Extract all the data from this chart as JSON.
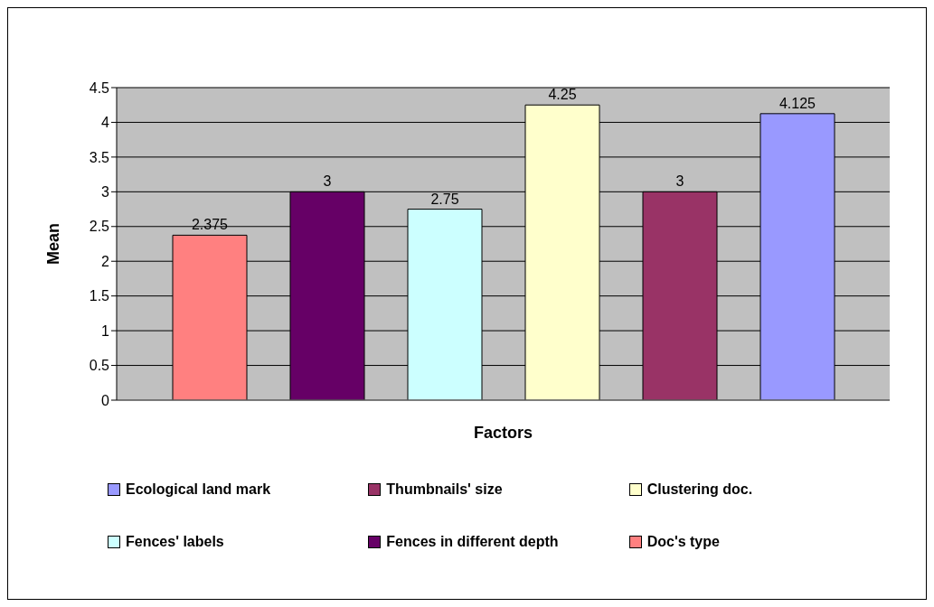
{
  "chart_data": {
    "type": "bar",
    "xlabel": "Factors",
    "ylabel": "Mean",
    "categories": [
      null
    ],
    "series": [
      {
        "name": "Doc's type",
        "color": "#ff8080",
        "values": [
          2.375
        ]
      },
      {
        "name": "Fences in different depth",
        "color": "#660066",
        "values": [
          3
        ]
      },
      {
        "name": "Fences' labels",
        "color": "#ccffff",
        "values": [
          2.75
        ]
      },
      {
        "name": "Clustering doc.",
        "color": "#ffffcc",
        "values": [
          4.25
        ]
      },
      {
        "name": "Thumbnails' size",
        "color": "#993366",
        "values": [
          3
        ]
      },
      {
        "name": "Ecological land mark",
        "color": "#9999ff",
        "values": [
          4.125
        ]
      }
    ],
    "ylim": [
      0,
      4.5
    ],
    "yticks": [
      0,
      0.5,
      1,
      1.5,
      2,
      2.5,
      3,
      3.5,
      4,
      4.5
    ],
    "grid": "y",
    "legend": "bottom",
    "tick_labels": "y",
    "data_labels": true
  }
}
